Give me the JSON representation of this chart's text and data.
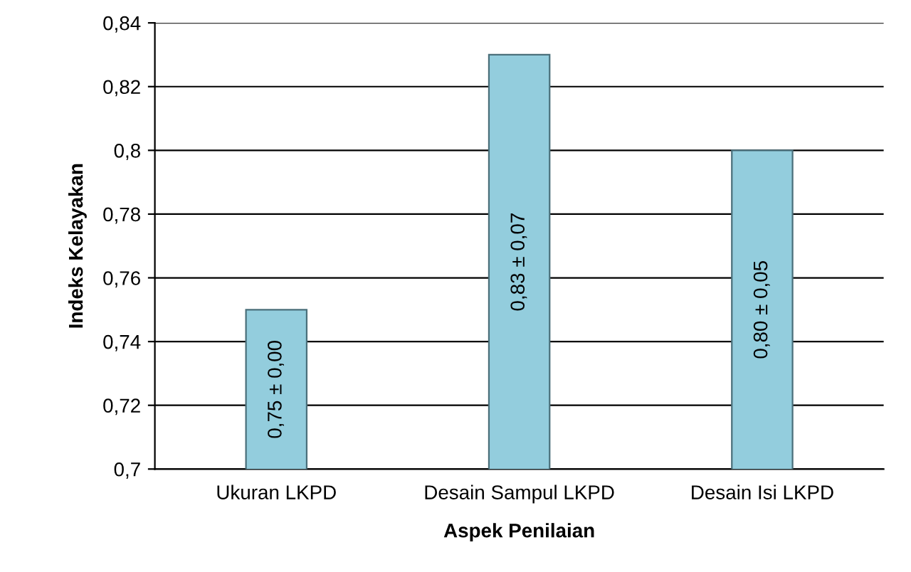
{
  "chart_data": {
    "type": "bar",
    "xlabel": "Aspek Penilaian",
    "ylabel": "Indeks Kelayakan",
    "categories": [
      "Ukuran LKPD",
      "Desain Sampul LKPD",
      "Desain Isi LKPD"
    ],
    "values": [
      0.75,
      0.83,
      0.8
    ],
    "color": "#93cddd",
    "value_labels": [
      "0,75 ± 0,00",
      "0,83 ± 0,07",
      "0,80 ± 0,05"
    ],
    "ylim": [
      0.7,
      0.84
    ],
    "yticks": [
      {
        "value": 0.7,
        "label": "0,7"
      },
      {
        "value": 0.72,
        "label": "0,72"
      },
      {
        "value": 0.74,
        "label": "0,74"
      },
      {
        "value": 0.76,
        "label": "0,76"
      },
      {
        "value": 0.78,
        "label": "0,78"
      },
      {
        "value": 0.8,
        "label": "0,8"
      },
      {
        "value": 0.82,
        "label": "0,82"
      },
      {
        "value": 0.84,
        "label": "0,84"
      }
    ],
    "grid": "y",
    "legend": false
  }
}
